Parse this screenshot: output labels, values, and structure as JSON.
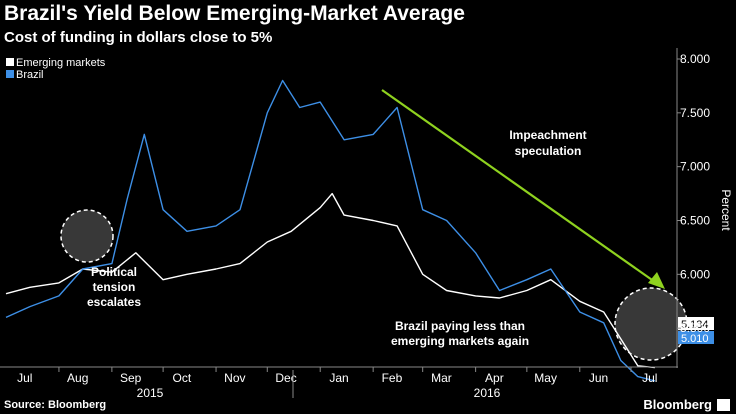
{
  "title": "Brazil's Yield Below Emerging-Market Average",
  "subtitle": "Cost of funding in dollars close to 5%",
  "source": "Source: Bloomberg",
  "brand": "Bloomberg",
  "colors": {
    "emerging": "#ffffff",
    "brazil": "#3d8fe6",
    "arrow": "#8fd21f",
    "background": "#000000"
  },
  "chart_data": {
    "type": "line",
    "ylabel": "Percent",
    "ylim": [
      5.0,
      8.0
    ],
    "yticks": [
      "5.500",
      "6.000",
      "6.500",
      "7.000",
      "7.500",
      "8.000"
    ],
    "xticks": [
      "Jul",
      "Aug",
      "Sep",
      "Oct",
      "Nov",
      "Dec",
      "Jan",
      "Feb",
      "Mar",
      "Apr",
      "May",
      "Jun",
      "Jul"
    ],
    "years": [
      "2015",
      "2016"
    ],
    "legend": [
      "Emerging markets",
      "Brazil"
    ],
    "legend_position": "top-left",
    "grid": false,
    "series": [
      {
        "name": "Emerging markets",
        "x": [
          "2015-07-01",
          "2015-07-15",
          "2015-08-01",
          "2015-08-15",
          "2015-09-01",
          "2015-09-15",
          "2015-10-01",
          "2015-10-15",
          "2015-11-01",
          "2015-11-15",
          "2015-12-01",
          "2015-12-15",
          "2016-01-01",
          "2016-01-08",
          "2016-01-15",
          "2016-02-01",
          "2016-02-15",
          "2016-03-01",
          "2016-03-15",
          "2016-04-01",
          "2016-04-15",
          "2016-05-01",
          "2016-05-15",
          "2016-06-01",
          "2016-06-15",
          "2016-06-25",
          "2016-07-05",
          "2016-07-15"
        ],
        "values": [
          5.82,
          5.88,
          5.92,
          6.05,
          6.02,
          6.2,
          5.95,
          6.0,
          6.05,
          6.1,
          6.3,
          6.4,
          6.62,
          6.75,
          6.55,
          6.5,
          6.45,
          6.0,
          5.85,
          5.8,
          5.78,
          5.85,
          5.95,
          5.75,
          5.65,
          5.4,
          5.15,
          5.134
        ],
        "last_label": "5.134"
      },
      {
        "name": "Brazil",
        "x": [
          "2015-07-01",
          "2015-07-15",
          "2015-08-01",
          "2015-08-15",
          "2015-09-01",
          "2015-09-10",
          "2015-09-20",
          "2015-10-01",
          "2015-10-15",
          "2015-11-01",
          "2015-11-15",
          "2015-12-01",
          "2015-12-10",
          "2015-12-20",
          "2016-01-01",
          "2016-01-15",
          "2016-02-01",
          "2016-02-15",
          "2016-03-01",
          "2016-03-15",
          "2016-04-01",
          "2016-04-15",
          "2016-05-01",
          "2016-05-15",
          "2016-06-01",
          "2016-06-15",
          "2016-06-25",
          "2016-07-05",
          "2016-07-15"
        ],
        "values": [
          5.6,
          5.7,
          5.8,
          6.05,
          6.1,
          6.7,
          7.3,
          6.6,
          6.4,
          6.45,
          6.6,
          7.5,
          7.8,
          7.55,
          7.6,
          7.25,
          7.3,
          7.55,
          6.6,
          6.5,
          6.2,
          5.85,
          5.95,
          6.05,
          5.65,
          5.55,
          5.2,
          5.05,
          5.01
        ],
        "last_label": "5.010"
      }
    ],
    "annotations": [
      {
        "id": "political",
        "lines": [
          "Political",
          "tension",
          "escalates"
        ]
      },
      {
        "id": "impeachment",
        "lines": [
          "Impeachment",
          "speculation"
        ]
      },
      {
        "id": "paying-less",
        "lines": [
          "Brazil paying less than",
          "emerging markets again"
        ]
      }
    ]
  }
}
